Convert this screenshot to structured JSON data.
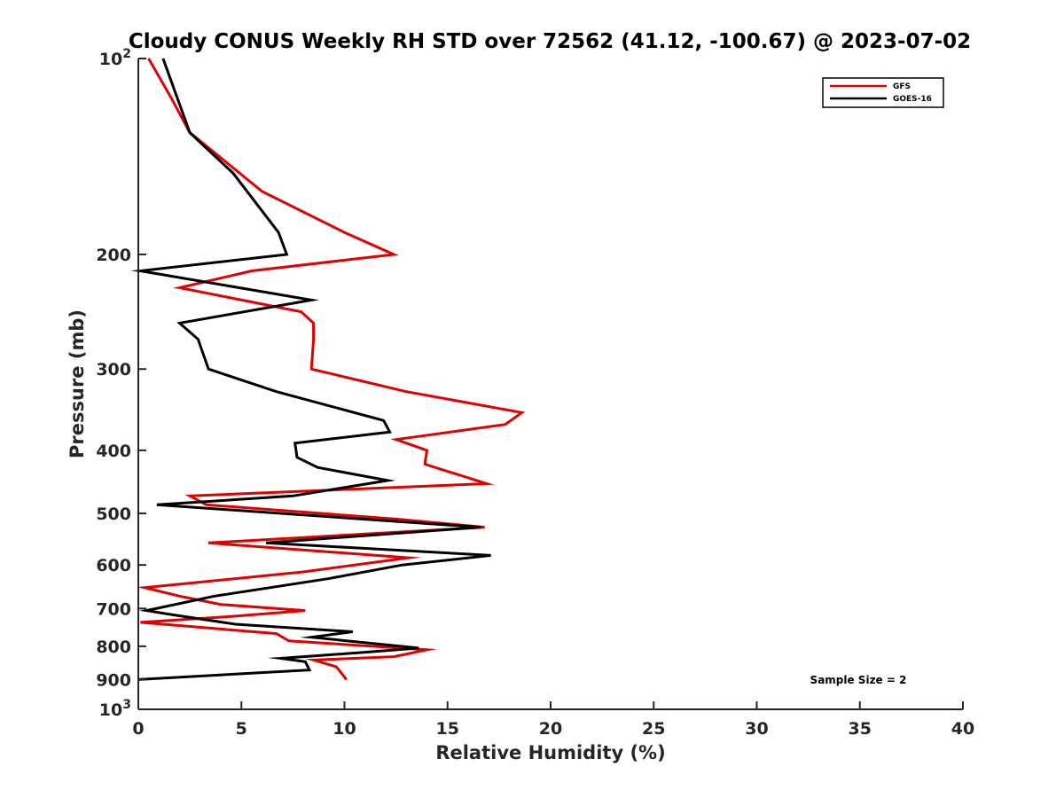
{
  "chart_data": {
    "type": "line",
    "title": "Cloudy CONUS Weekly RH STD over 72562 (41.12, -100.67) @ 2023-07-02",
    "xlabel": "Relative Humidity (%)",
    "ylabel": "Pressure (mb)",
    "xlim": [
      0,
      40
    ],
    "ylim": [
      100,
      1000
    ],
    "y_scale": "log",
    "y_reversed": true,
    "grid": false,
    "legend_position": "top-right",
    "x_ticks": [
      "0",
      "5",
      "10",
      "15",
      "20",
      "25",
      "30",
      "35",
      "40"
    ],
    "y_ticks": [
      {
        "value": 100,
        "base": "10",
        "exp": "2"
      },
      {
        "value": 200,
        "label": "200"
      },
      {
        "value": 300,
        "label": "300"
      },
      {
        "value": 400,
        "label": "400"
      },
      {
        "value": 500,
        "label": "500"
      },
      {
        "value": 600,
        "label": "600"
      },
      {
        "value": 700,
        "label": "700"
      },
      {
        "value": 800,
        "label": "800"
      },
      {
        "value": 900,
        "label": "900"
      },
      {
        "value": 1000,
        "base": "10",
        "exp": "3"
      }
    ],
    "series": [
      {
        "name": "GFS",
        "color": "#e00000",
        "points": [
          [
            0.5,
            100
          ],
          [
            1.6,
            115
          ],
          [
            2.5,
            130
          ],
          [
            6.0,
            160
          ],
          [
            10.0,
            185
          ],
          [
            12.4,
            200
          ],
          [
            5.5,
            212
          ],
          [
            2.0,
            225
          ],
          [
            7.9,
            245
          ],
          [
            8.5,
            255
          ],
          [
            8.5,
            270
          ],
          [
            8.4,
            300
          ],
          [
            13.0,
            325
          ],
          [
            18.6,
            350
          ],
          [
            17.8,
            365
          ],
          [
            12.5,
            385
          ],
          [
            14.0,
            400
          ],
          [
            13.9,
            420
          ],
          [
            16.9,
            450
          ],
          [
            2.5,
            470
          ],
          [
            3.3,
            485
          ],
          [
            12.5,
            510
          ],
          [
            16.8,
            525
          ],
          [
            3.4,
            555
          ],
          [
            13.1,
            585
          ],
          [
            8.0,
            615
          ],
          [
            0.3,
            650
          ],
          [
            2.0,
            670
          ],
          [
            4.0,
            690
          ],
          [
            8.1,
            705
          ],
          [
            4.5,
            720
          ],
          [
            0.1,
            735
          ],
          [
            6.7,
            765
          ],
          [
            7.3,
            785
          ],
          [
            14.0,
            810
          ],
          [
            12.4,
            830
          ],
          [
            8.5,
            840
          ],
          [
            9.6,
            860
          ],
          [
            10.1,
            900
          ]
        ]
      },
      {
        "name": "GOES-16",
        "color": "#000000",
        "points": [
          [
            1.2,
            100
          ],
          [
            2.5,
            130
          ],
          [
            4.6,
            150
          ],
          [
            6.8,
            185
          ],
          [
            7.2,
            200
          ],
          [
            0.1,
            212
          ],
          [
            8.4,
            235
          ],
          [
            2.0,
            255
          ],
          [
            2.9,
            270
          ],
          [
            3.4,
            300
          ],
          [
            6.7,
            325
          ],
          [
            11.9,
            360
          ],
          [
            12.2,
            375
          ],
          [
            7.6,
            390
          ],
          [
            7.7,
            410
          ],
          [
            8.7,
            425
          ],
          [
            12.1,
            445
          ],
          [
            7.5,
            470
          ],
          [
            0.9,
            485
          ],
          [
            16.6,
            525
          ],
          [
            6.2,
            555
          ],
          [
            17.1,
            580
          ],
          [
            12.8,
            600
          ],
          [
            9.2,
            630
          ],
          [
            3.7,
            670
          ],
          [
            0.4,
            705
          ],
          [
            1.6,
            715
          ],
          [
            4.7,
            740
          ],
          [
            10.4,
            760
          ],
          [
            8.4,
            775
          ],
          [
            13.6,
            805
          ],
          [
            11.5,
            815
          ],
          [
            6.9,
            835
          ],
          [
            8.1,
            845
          ],
          [
            8.3,
            870
          ],
          [
            0.0,
            900
          ]
        ]
      }
    ],
    "annotations": [
      "Sample Size = 2"
    ]
  }
}
